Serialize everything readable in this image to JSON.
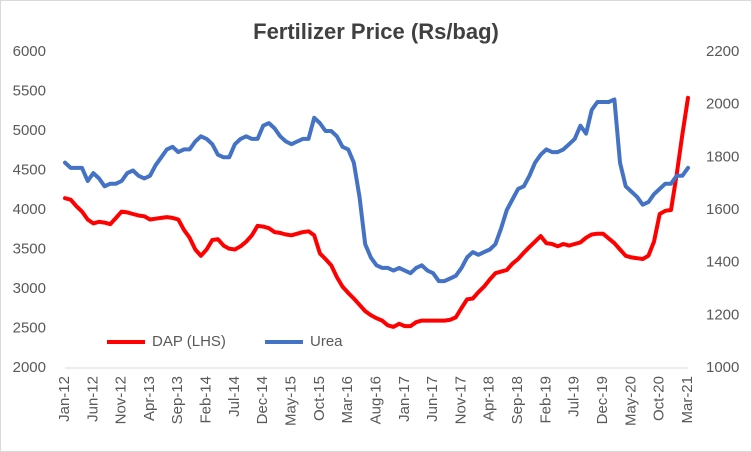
{
  "chart_data": {
    "type": "line",
    "title": "Fertilizer Price (Rs/bag)",
    "categories": [
      "Jan-12",
      null,
      null,
      null,
      null,
      "Jun-12",
      null,
      null,
      null,
      null,
      "Nov-12",
      null,
      null,
      null,
      null,
      "Apr-13",
      null,
      null,
      null,
      null,
      "Sep-13",
      null,
      null,
      null,
      null,
      "Feb-14",
      null,
      null,
      null,
      null,
      "Jul-14",
      null,
      null,
      null,
      null,
      "Dec-14",
      null,
      null,
      null,
      null,
      "May-15",
      null,
      null,
      null,
      null,
      "Oct-15",
      null,
      null,
      null,
      null,
      "Mar-16",
      null,
      null,
      null,
      null,
      "Aug-16",
      null,
      null,
      null,
      null,
      "Jan-17",
      null,
      null,
      null,
      null,
      "Jun-17",
      null,
      null,
      null,
      null,
      "Nov-17",
      null,
      null,
      null,
      null,
      "Apr-18",
      null,
      null,
      null,
      null,
      "Sep-18",
      null,
      null,
      null,
      null,
      "Feb-19",
      null,
      null,
      null,
      null,
      "Jul-19",
      null,
      null,
      null,
      null,
      "Dec-19",
      null,
      null,
      null,
      null,
      "May-20",
      null,
      null,
      null,
      null,
      "Oct-20",
      null,
      null,
      null,
      null,
      "Mar-21"
    ],
    "series": [
      {
        "name": "DAP (LHS)",
        "color": "#ff0000",
        "axis": "y",
        "values": [
          4150,
          4130,
          4050,
          3980,
          3880,
          3830,
          3850,
          3840,
          3820,
          3900,
          3980,
          3970,
          3950,
          3930,
          3920,
          3880,
          3890,
          3900,
          3910,
          3900,
          3880,
          3750,
          3650,
          3500,
          3420,
          3500,
          3620,
          3630,
          3550,
          3510,
          3500,
          3540,
          3600,
          3680,
          3800,
          3790,
          3770,
          3720,
          3710,
          3690,
          3680,
          3700,
          3720,
          3730,
          3680,
          3450,
          3380,
          3300,
          3150,
          3030,
          2950,
          2880,
          2800,
          2720,
          2670,
          2630,
          2600,
          2540,
          2520,
          2560,
          2530,
          2530,
          2580,
          2600,
          2600,
          2600,
          2600,
          2600,
          2610,
          2640,
          2760,
          2870,
          2880,
          2960,
          3030,
          3120,
          3200,
          3220,
          3240,
          3320,
          3380,
          3460,
          3530,
          3600,
          3670,
          3580,
          3570,
          3540,
          3570,
          3550,
          3570,
          3590,
          3650,
          3690,
          3700,
          3700,
          3640,
          3580,
          3500,
          3420,
          3400,
          3390,
          3380,
          3420,
          3600,
          3950,
          3990,
          4000,
          4450,
          4950,
          5420
        ]
      },
      {
        "name": "Urea",
        "color": "#4472c4",
        "axis": "y2",
        "values": [
          1780,
          1760,
          1760,
          1760,
          1710,
          1740,
          1720,
          1690,
          1700,
          1700,
          1710,
          1740,
          1750,
          1730,
          1720,
          1730,
          1770,
          1800,
          1830,
          1840,
          1820,
          1830,
          1830,
          1860,
          1880,
          1870,
          1850,
          1810,
          1800,
          1800,
          1850,
          1870,
          1880,
          1870,
          1870,
          1920,
          1930,
          1910,
          1880,
          1860,
          1850,
          1860,
          1870,
          1870,
          1950,
          1930,
          1900,
          1900,
          1880,
          1840,
          1830,
          1780,
          1650,
          1470,
          1420,
          1390,
          1380,
          1380,
          1370,
          1380,
          1370,
          1360,
          1380,
          1390,
          1370,
          1360,
          1330,
          1330,
          1340,
          1350,
          1380,
          1420,
          1440,
          1430,
          1440,
          1450,
          1470,
          1530,
          1600,
          1640,
          1680,
          1690,
          1730,
          1780,
          1810,
          1830,
          1820,
          1820,
          1830,
          1850,
          1870,
          1920,
          1890,
          1980,
          2010,
          2010,
          2010,
          2020,
          1780,
          1690,
          1670,
          1650,
          1620,
          1630,
          1660,
          1680,
          1700,
          1700,
          1730,
          1730,
          1760
        ]
      }
    ],
    "ylim": [
      2000,
      6000
    ],
    "yticks": [
      2000,
      2500,
      3000,
      3500,
      4000,
      4500,
      5000,
      5500,
      6000
    ],
    "y2lim": [
      1000,
      2200
    ],
    "y2ticks": [
      1000,
      1200,
      1400,
      1600,
      1800,
      2000,
      2200
    ],
    "grid": false,
    "legend": "lower left"
  }
}
